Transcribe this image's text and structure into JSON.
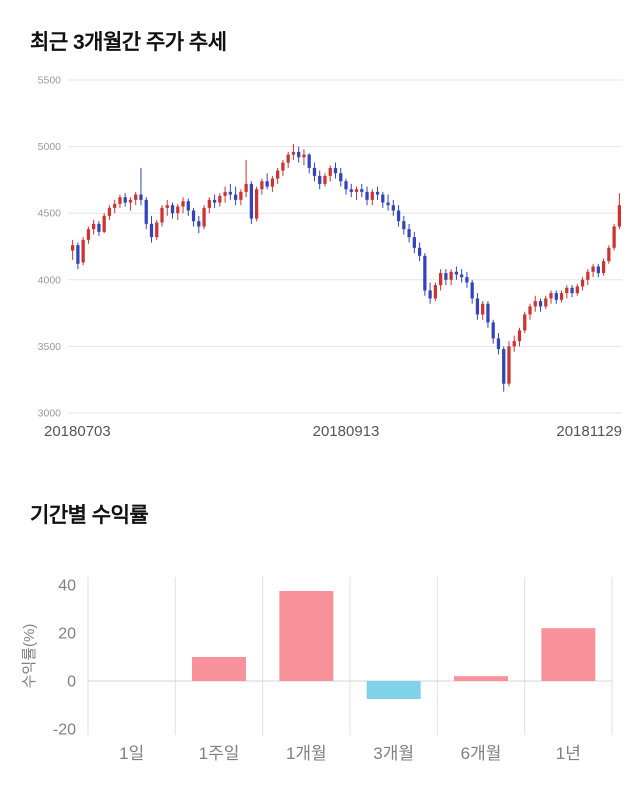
{
  "sections": {
    "price_trend": {
      "title": "최근 3개월간 주가 추세"
    },
    "returns": {
      "title": "기간별 수익률"
    }
  },
  "chart_data": [
    {
      "type": "candlestick",
      "title": "최근 3개월간 주가 추세",
      "ylim": [
        3000,
        5500
      ],
      "yticks": [
        3000,
        3500,
        4000,
        4500,
        5000,
        5500
      ],
      "xtick_labels": [
        "20180703",
        "20180913",
        "20181129"
      ],
      "up_color": "#cc3333",
      "down_color": "#3344bb",
      "grid_color": "#e6e6e6",
      "ytick_color": "#999999",
      "xtick_color": "#555555",
      "candles": [
        [
          4220,
          4300,
          4150,
          4260
        ],
        [
          4260,
          4280,
          4080,
          4120
        ],
        [
          4130,
          4320,
          4110,
          4300
        ],
        [
          4300,
          4400,
          4270,
          4380
        ],
        [
          4380,
          4450,
          4340,
          4420
        ],
        [
          4420,
          4440,
          4330,
          4360
        ],
        [
          4360,
          4500,
          4350,
          4480
        ],
        [
          4480,
          4560,
          4450,
          4540
        ],
        [
          4540,
          4600,
          4500,
          4570
        ],
        [
          4570,
          4640,
          4540,
          4620
        ],
        [
          4620,
          4650,
          4550,
          4580
        ],
        [
          4580,
          4620,
          4520,
          4600
        ],
        [
          4600,
          4660,
          4560,
          4640
        ],
        [
          4640,
          4840,
          4560,
          4600
        ],
        [
          4600,
          4620,
          4380,
          4420
        ],
        [
          4420,
          4480,
          4280,
          4320
        ],
        [
          4320,
          4450,
          4300,
          4430
        ],
        [
          4430,
          4560,
          4400,
          4540
        ],
        [
          4540,
          4600,
          4480,
          4560
        ],
        [
          4560,
          4580,
          4460,
          4500
        ],
        [
          4500,
          4570,
          4450,
          4550
        ],
        [
          4550,
          4620,
          4500,
          4590
        ],
        [
          4590,
          4610,
          4480,
          4520
        ],
        [
          4520,
          4540,
          4400,
          4440
        ],
        [
          4440,
          4480,
          4350,
          4400
        ],
        [
          4400,
          4560,
          4380,
          4540
        ],
        [
          4540,
          4620,
          4500,
          4600
        ],
        [
          4600,
          4640,
          4540,
          4580
        ],
        [
          4580,
          4650,
          4550,
          4630
        ],
        [
          4630,
          4700,
          4580,
          4660
        ],
        [
          4660,
          4720,
          4600,
          4640
        ],
        [
          4640,
          4700,
          4560,
          4600
        ],
        [
          4600,
          4680,
          4560,
          4660
        ],
        [
          4660,
          4900,
          4620,
          4720
        ],
        [
          4720,
          4740,
          4420,
          4460
        ],
        [
          4460,
          4700,
          4440,
          4680
        ],
        [
          4680,
          4760,
          4640,
          4740
        ],
        [
          4740,
          4800,
          4680,
          4700
        ],
        [
          4700,
          4780,
          4660,
          4760
        ],
        [
          4760,
          4840,
          4720,
          4820
        ],
        [
          4820,
          4900,
          4780,
          4880
        ],
        [
          4880,
          4960,
          4840,
          4940
        ],
        [
          4940,
          5020,
          4900,
          4960
        ],
        [
          4960,
          5000,
          4880,
          4920
        ],
        [
          4920,
          4980,
          4860,
          4940
        ],
        [
          4940,
          4950,
          4800,
          4840
        ],
        [
          4840,
          4880,
          4740,
          4780
        ],
        [
          4780,
          4820,
          4680,
          4720
        ],
        [
          4720,
          4800,
          4700,
          4780
        ],
        [
          4780,
          4860,
          4740,
          4840
        ],
        [
          4840,
          4880,
          4760,
          4800
        ],
        [
          4800,
          4840,
          4700,
          4740
        ],
        [
          4740,
          4760,
          4640,
          4680
        ],
        [
          4680,
          4720,
          4620,
          4660
        ],
        [
          4660,
          4700,
          4600,
          4680
        ],
        [
          4680,
          4720,
          4620,
          4660
        ],
        [
          4660,
          4700,
          4560,
          4600
        ],
        [
          4600,
          4680,
          4560,
          4660
        ],
        [
          4660,
          4700,
          4600,
          4640
        ],
        [
          4640,
          4660,
          4540,
          4580
        ],
        [
          4580,
          4640,
          4520,
          4560
        ],
        [
          4560,
          4600,
          4480,
          4520
        ],
        [
          4520,
          4560,
          4400,
          4440
        ],
        [
          4440,
          4480,
          4340,
          4380
        ],
        [
          4380,
          4420,
          4280,
          4320
        ],
        [
          4320,
          4360,
          4200,
          4240
        ],
        [
          4240,
          4280,
          4140,
          4180
        ],
        [
          4180,
          4200,
          3880,
          3920
        ],
        [
          3920,
          3980,
          3820,
          3860
        ],
        [
          3860,
          3980,
          3840,
          3960
        ],
        [
          3960,
          4080,
          3920,
          4050
        ],
        [
          4050,
          4080,
          3960,
          4000
        ],
        [
          4000,
          4080,
          3960,
          4060
        ],
        [
          4060,
          4100,
          4000,
          4040
        ],
        [
          4040,
          4080,
          3980,
          4020
        ],
        [
          4020,
          4060,
          3940,
          3980
        ],
        [
          3980,
          4000,
          3820,
          3860
        ],
        [
          3860,
          3900,
          3700,
          3740
        ],
        [
          3740,
          3840,
          3700,
          3820
        ],
        [
          3820,
          3840,
          3640,
          3680
        ],
        [
          3680,
          3700,
          3520,
          3560
        ],
        [
          3560,
          3600,
          3440,
          3480
        ],
        [
          3480,
          3500,
          3160,
          3220
        ],
        [
          3220,
          3540,
          3200,
          3500
        ],
        [
          3500,
          3580,
          3460,
          3540
        ],
        [
          3540,
          3640,
          3500,
          3620
        ],
        [
          3620,
          3760,
          3600,
          3740
        ],
        [
          3740,
          3820,
          3700,
          3800
        ],
        [
          3800,
          3880,
          3760,
          3840
        ],
        [
          3840,
          3860,
          3760,
          3800
        ],
        [
          3800,
          3880,
          3780,
          3860
        ],
        [
          3860,
          3920,
          3820,
          3900
        ],
        [
          3900,
          3920,
          3820,
          3850
        ],
        [
          3850,
          3920,
          3830,
          3900
        ],
        [
          3900,
          3960,
          3860,
          3940
        ],
        [
          3940,
          3960,
          3870,
          3900
        ],
        [
          3900,
          3970,
          3880,
          3950
        ],
        [
          3950,
          4020,
          3920,
          4000
        ],
        [
          4000,
          4080,
          3960,
          4060
        ],
        [
          4060,
          4120,
          4020,
          4100
        ],
        [
          4100,
          4120,
          4020,
          4050
        ],
        [
          4050,
          4160,
          4030,
          4140
        ],
        [
          4140,
          4260,
          4120,
          4240
        ],
        [
          4240,
          4420,
          4220,
          4400
        ],
        [
          4400,
          4650,
          4380,
          4560
        ]
      ]
    },
    {
      "type": "bar",
      "title": "기간별 수익률",
      "categories": [
        "1일",
        "1주일",
        "1개월",
        "3개월",
        "6개월",
        "1년"
      ],
      "values": [
        0,
        10,
        37.5,
        -7.5,
        2,
        22
      ],
      "ylabel": "수익률(%)",
      "ylim": [
        -20,
        40
      ],
      "yticks": [
        -20,
        0,
        20,
        40
      ],
      "positive_color": "#f7929a",
      "negative_color": "#7fd2ea",
      "grid_color": "#e2e2e2",
      "zero_line_color": "#d5d5d5",
      "tick_color": "#808080",
      "axis_label_color": "#808080"
    }
  ]
}
